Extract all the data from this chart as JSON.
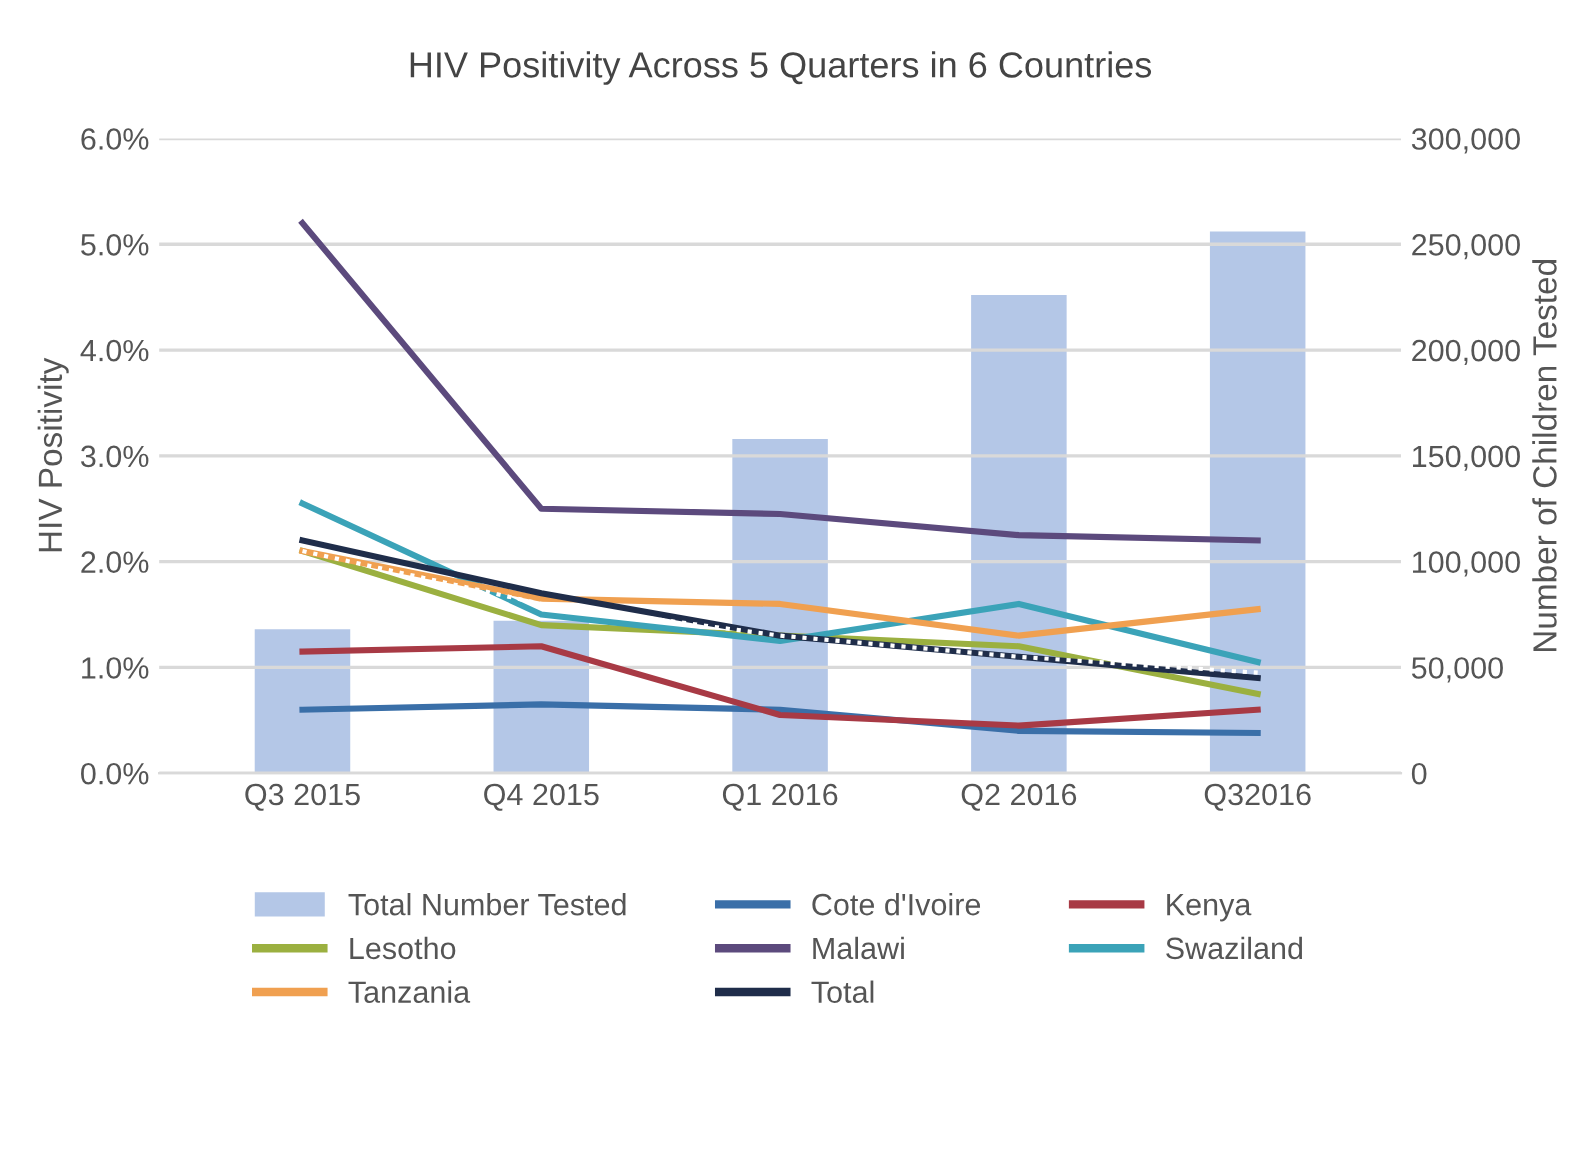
{
  "chart_data": {
    "type": "line",
    "title": "HIV Positivity Across 5 Quarters in 6 Countries",
    "ylabel": "HIV Positivity",
    "y2label": "Number of Children Tested",
    "categories": [
      "Q3 2015",
      "Q4 2015",
      "Q1 2016",
      "Q2 2016",
      "Q32016"
    ],
    "series": [
      {
        "name": "Total Number Tested",
        "type": "bar",
        "axis": "y2",
        "color": "#b4c7e7",
        "values": [
          68000,
          72000,
          158000,
          226000,
          256000
        ]
      },
      {
        "name": "Cote d'Ivoire",
        "color": "#3a6fa8",
        "values": [
          0.6,
          0.65,
          0.6,
          0.4,
          0.38
        ]
      },
      {
        "name": "Kenya",
        "color": "#a83a45",
        "values": [
          1.15,
          1.2,
          0.55,
          0.45,
          0.6
        ]
      },
      {
        "name": "Lesotho",
        "color": "#9bb040",
        "values": [
          2.1,
          1.4,
          1.3,
          1.2,
          0.75
        ]
      },
      {
        "name": "Malawi",
        "color": "#5c4a7d",
        "values": [
          5.2,
          2.5,
          2.45,
          2.25,
          2.2
        ]
      },
      {
        "name": "Swaziland",
        "color": "#3ba3b8",
        "values": [
          2.55,
          1.5,
          1.25,
          1.6,
          1.05
        ]
      },
      {
        "name": "Tanzania",
        "color": "#f0a050",
        "values": [
          2.1,
          1.65,
          1.6,
          1.3,
          1.55
        ]
      },
      {
        "name": "Total",
        "color": "#1f2d4a",
        "values": [
          2.2,
          1.7,
          1.3,
          1.1,
          0.9
        ]
      },
      {
        "color": "#ffffff",
        "line_style": "dotted",
        "values": [
          2.1,
          1.6,
          1.3,
          1.1,
          0.95
        ]
      }
    ],
    "ylim": [
      0,
      6
    ],
    "yticks": [
      {
        "value": 0,
        "label": "0.0%"
      },
      {
        "value": 1,
        "label": "1.0%"
      },
      {
        "value": 2,
        "label": "2.0%"
      },
      {
        "value": 3,
        "label": "3.0%"
      },
      {
        "value": 4,
        "label": "4.0%"
      },
      {
        "value": 5,
        "label": "5.0%"
      },
      {
        "value": 6,
        "label": "6.0%"
      }
    ],
    "y2lim": [
      0,
      300000
    ],
    "y2ticks": [
      0,
      {
        "value": 50000,
        "label": "50,000"
      },
      {
        "value": 100000,
        "label": "100,000"
      },
      {
        "value": 150000,
        "label": "150,000"
      },
      {
        "value": 200000,
        "label": "200,000"
      },
      {
        "value": 250000,
        "label": "250,000"
      },
      {
        "value": 300000,
        "label": "300,000"
      }
    ],
    "grid": "y",
    "legend": "bottom",
    "marker": "none",
    "line_style": "solid"
  }
}
